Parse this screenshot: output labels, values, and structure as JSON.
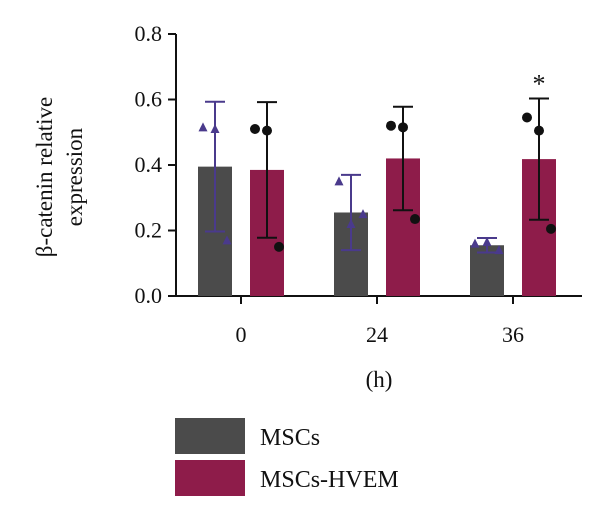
{
  "chart_data": {
    "type": "bar",
    "categories": [
      "0",
      "24",
      "36"
    ],
    "xlabel": "(h)",
    "ylabel_lines": [
      "β-catenin relative",
      "expression"
    ],
    "ylim": [
      0,
      0.8
    ],
    "yticks": [
      "0.0",
      "0.2",
      "0.4",
      "0.6",
      "0.8"
    ],
    "legend_position": "bottom",
    "series": [
      {
        "name": "MSCs",
        "color": "#4b4b4b",
        "error_color": "#4a3a8c",
        "marker": "triangle",
        "values": [
          0.395,
          0.255,
          0.155
        ],
        "errors": [
          0.198,
          0.115,
          0.022
        ],
        "points": [
          [
            0.515,
            0.51,
            0.17
          ],
          [
            0.35,
            0.22,
            0.25
          ],
          [
            0.16,
            0.165,
            0.14
          ]
        ]
      },
      {
        "name": "MSCs-HVEM",
        "color": "#8e1c4a",
        "error_color": "#111111",
        "marker": "circle",
        "values": [
          0.385,
          0.42,
          0.418
        ],
        "errors": [
          0.207,
          0.158,
          0.185
        ],
        "points": [
          [
            0.51,
            0.505,
            0.15
          ],
          [
            0.52,
            0.515,
            0.235
          ],
          [
            0.545,
            0.505,
            0.205
          ]
        ]
      }
    ],
    "annotations": [
      {
        "category": "36",
        "series": "MSCs-HVEM",
        "text": "*"
      }
    ]
  }
}
